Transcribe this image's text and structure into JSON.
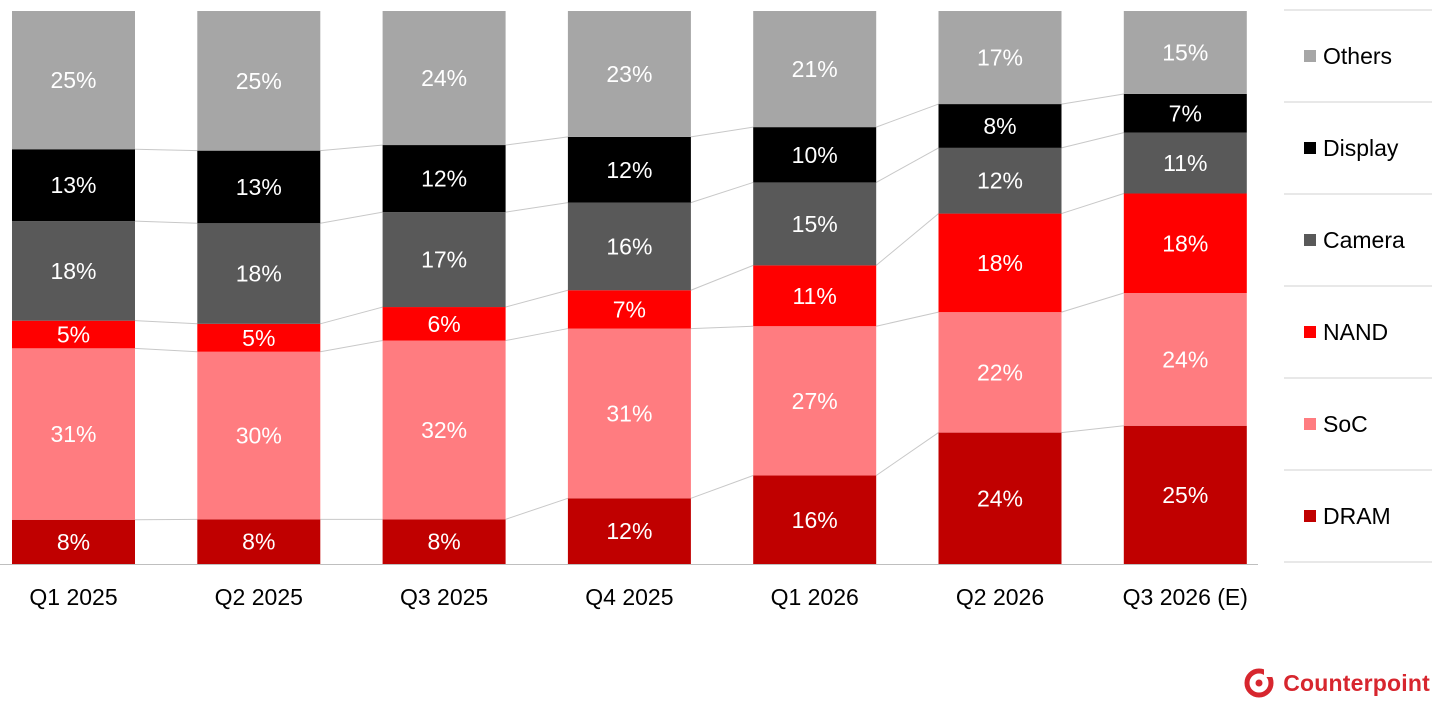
{
  "chart_data": {
    "type": "bar",
    "stacked": true,
    "percent_stacked": true,
    "categories": [
      "Q1 2025",
      "Q2 2025",
      "Q3 2025",
      "Q4 2025",
      "Q1 2026",
      "Q2 2026",
      "Q3 2026 (E)"
    ],
    "series": [
      {
        "name": "DRAM",
        "color": "#c00000",
        "values": [
          8,
          8,
          8,
          12,
          16,
          24,
          25
        ]
      },
      {
        "name": "SoC",
        "color": "#ff7c80",
        "values": [
          31,
          30,
          32,
          31,
          27,
          22,
          24
        ]
      },
      {
        "name": "NAND",
        "color": "#ff0000",
        "values": [
          5,
          5,
          6,
          7,
          11,
          18,
          18
        ]
      },
      {
        "name": "Camera",
        "color": "#595959",
        "values": [
          18,
          18,
          17,
          16,
          15,
          12,
          11
        ]
      },
      {
        "name": "Display",
        "color": "#000000",
        "values": [
          13,
          13,
          12,
          12,
          10,
          8,
          7
        ]
      },
      {
        "name": "Others",
        "color": "#a6a6a6",
        "values": [
          25,
          25,
          24,
          23,
          21,
          17,
          15
        ]
      }
    ],
    "legend_order": [
      "Others",
      "Display",
      "Camera",
      "NAND",
      "SoC",
      "DRAM"
    ],
    "data_label_suffix": "%",
    "ylim": [
      0,
      100
    ],
    "legend_position": "right",
    "series_connector_lines": true,
    "grid": false
  },
  "brand": {
    "name": "Counterpoint",
    "logo_icon": "counterpoint-logo-icon",
    "color": "#d7262e"
  }
}
